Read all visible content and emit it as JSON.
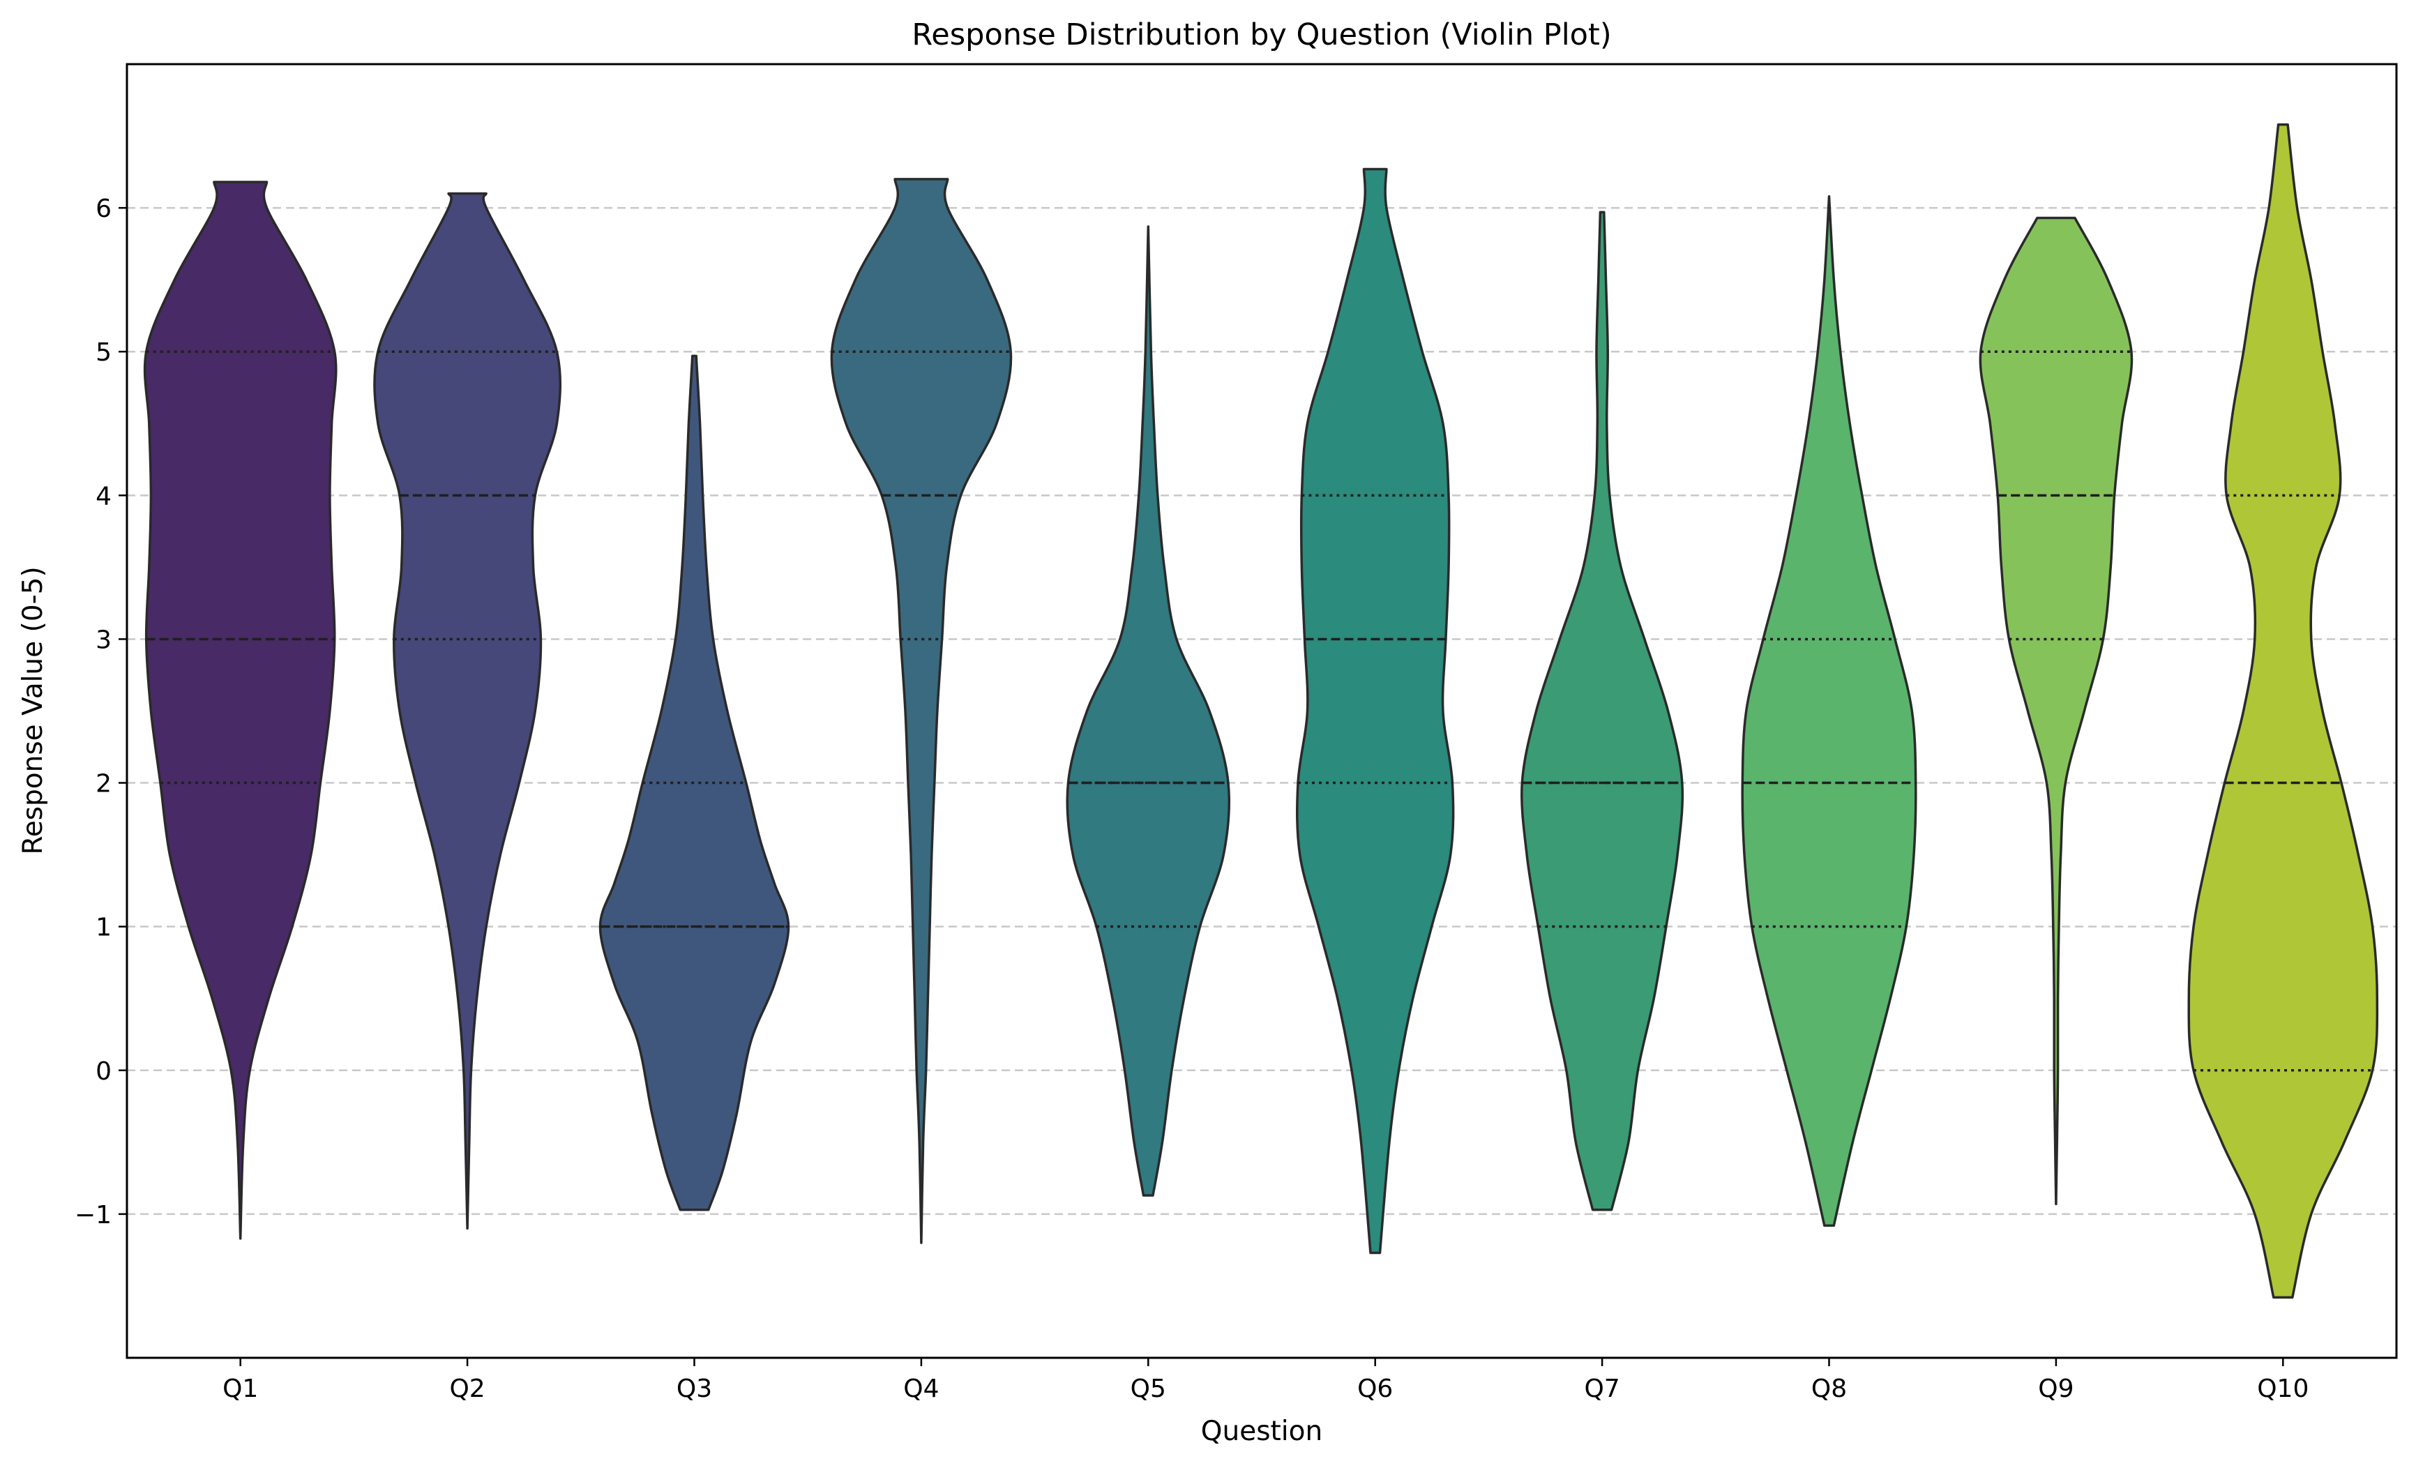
{
  "chart_data": {
    "type": "violin",
    "title": "Response Distribution by Question (Violin Plot)",
    "xlabel": "Question",
    "ylabel": "Response Value (0-5)",
    "ylim": [
      -2,
      7
    ],
    "yticks": [
      -1,
      0,
      1,
      2,
      3,
      4,
      5,
      6
    ],
    "ytick_labels": [
      "−1",
      "0",
      "1",
      "2",
      "3",
      "4",
      "5",
      "6"
    ],
    "grid": {
      "y": true,
      "style": "dashed"
    },
    "inner": "quartile",
    "categories": [
      "Q1",
      "Q2",
      "Q3",
      "Q4",
      "Q5",
      "Q6",
      "Q7",
      "Q8",
      "Q9",
      "Q10"
    ],
    "series": [
      {
        "category": "Q1",
        "color": "#482a66",
        "range": [
          -1.17,
          6.18
        ],
        "quartiles": [
          2,
          3,
          5
        ],
        "density": [
          [
            -1.17,
            0.0
          ],
          [
            -0.5,
            0.03
          ],
          [
            0,
            0.1
          ],
          [
            0.5,
            0.3
          ],
          [
            1,
            0.55
          ],
          [
            1.5,
            0.75
          ],
          [
            2,
            0.85
          ],
          [
            2.5,
            0.95
          ],
          [
            3,
            1.0
          ],
          [
            3.5,
            0.97
          ],
          [
            4,
            0.95
          ],
          [
            4.5,
            0.97
          ],
          [
            5,
            1.0
          ],
          [
            5.5,
            0.7
          ],
          [
            6,
            0.28
          ],
          [
            6.18,
            0.28
          ]
        ]
      },
      {
        "category": "Q2",
        "color": "#46487a",
        "range": [
          -1.1,
          6.1
        ],
        "quartiles": [
          3,
          4,
          5
        ],
        "density": [
          [
            -1.1,
            0.0
          ],
          [
            -0.5,
            0.02
          ],
          [
            0,
            0.04
          ],
          [
            0.5,
            0.1
          ],
          [
            1,
            0.2
          ],
          [
            1.5,
            0.35
          ],
          [
            2,
            0.55
          ],
          [
            2.5,
            0.72
          ],
          [
            3,
            0.78
          ],
          [
            3.5,
            0.7
          ],
          [
            4,
            0.72
          ],
          [
            4.5,
            0.95
          ],
          [
            5,
            0.95
          ],
          [
            5.5,
            0.6
          ],
          [
            6,
            0.2
          ],
          [
            6.1,
            0.2
          ]
        ]
      },
      {
        "category": "Q3",
        "color": "#40577d",
        "range": [
          -0.97,
          4.97
        ],
        "quartiles": [
          1,
          1,
          2
        ],
        "density": [
          [
            -0.97,
            0.15
          ],
          [
            -0.7,
            0.3
          ],
          [
            -0.3,
            0.45
          ],
          [
            0.2,
            0.6
          ],
          [
            0.6,
            0.85
          ],
          [
            1,
            1.0
          ],
          [
            1.3,
            0.85
          ],
          [
            1.6,
            0.7
          ],
          [
            2,
            0.55
          ],
          [
            2.5,
            0.35
          ],
          [
            3,
            0.2
          ],
          [
            3.5,
            0.13
          ],
          [
            4,
            0.09
          ],
          [
            4.5,
            0.06
          ],
          [
            4.97,
            0.02
          ]
        ]
      },
      {
        "category": "Q4",
        "color": "#3a6a7f",
        "range": [
          -1.2,
          6.2
        ],
        "quartiles": [
          3,
          4,
          5
        ],
        "density": [
          [
            -1.2,
            0.0
          ],
          [
            -0.5,
            0.02
          ],
          [
            0,
            0.05
          ],
          [
            0.5,
            0.07
          ],
          [
            1,
            0.09
          ],
          [
            1.5,
            0.11
          ],
          [
            2,
            0.14
          ],
          [
            2.5,
            0.17
          ],
          [
            3,
            0.22
          ],
          [
            3.5,
            0.27
          ],
          [
            4,
            0.42
          ],
          [
            4.5,
            0.8
          ],
          [
            5,
            0.95
          ],
          [
            5.5,
            0.7
          ],
          [
            6,
            0.28
          ],
          [
            6.2,
            0.28
          ]
        ]
      },
      {
        "category": "Q5",
        "color": "#307a80",
        "range": [
          -0.87,
          5.87
        ],
        "quartiles": [
          1,
          2,
          2
        ],
        "density": [
          [
            -0.87,
            0.05
          ],
          [
            -0.5,
            0.15
          ],
          [
            0,
            0.25
          ],
          [
            0.5,
            0.38
          ],
          [
            1,
            0.55
          ],
          [
            1.5,
            0.8
          ],
          [
            2,
            0.85
          ],
          [
            2.5,
            0.65
          ],
          [
            3,
            0.3
          ],
          [
            3.5,
            0.17
          ],
          [
            4,
            0.1
          ],
          [
            4.5,
            0.06
          ],
          [
            5,
            0.03
          ],
          [
            5.87,
            0.0
          ]
        ]
      },
      {
        "category": "Q6",
        "color": "#2b8b7c",
        "range": [
          -1.27,
          6.27
        ],
        "quartiles": [
          2,
          3,
          4
        ],
        "density": [
          [
            -1.27,
            0.05
          ],
          [
            -0.5,
            0.15
          ],
          [
            0,
            0.25
          ],
          [
            0.5,
            0.4
          ],
          [
            1,
            0.6
          ],
          [
            1.5,
            0.8
          ],
          [
            2,
            0.82
          ],
          [
            2.5,
            0.72
          ],
          [
            3,
            0.75
          ],
          [
            3.5,
            0.78
          ],
          [
            4,
            0.78
          ],
          [
            4.5,
            0.72
          ],
          [
            5,
            0.5
          ],
          [
            5.5,
            0.3
          ],
          [
            6,
            0.12
          ],
          [
            6.27,
            0.12
          ]
        ]
      },
      {
        "category": "Q7",
        "color": "#3a9b74",
        "range": [
          -0.97,
          5.97
        ],
        "quartiles": [
          1,
          2,
          2
        ],
        "density": [
          [
            -0.97,
            0.1
          ],
          [
            -0.5,
            0.28
          ],
          [
            0,
            0.38
          ],
          [
            0.5,
            0.55
          ],
          [
            1,
            0.68
          ],
          [
            1.5,
            0.8
          ],
          [
            2,
            0.85
          ],
          [
            2.5,
            0.7
          ],
          [
            3,
            0.45
          ],
          [
            3.5,
            0.2
          ],
          [
            4,
            0.08
          ],
          [
            4.5,
            0.05
          ],
          [
            5,
            0.06
          ],
          [
            5.5,
            0.04
          ],
          [
            5.97,
            0.02
          ]
        ]
      },
      {
        "category": "Q8",
        "color": "#5ab46c",
        "range": [
          -1.08,
          6.08
        ],
        "quartiles": [
          1,
          2,
          3
        ],
        "density": [
          [
            -1.08,
            0.05
          ],
          [
            -0.5,
            0.25
          ],
          [
            0,
            0.45
          ],
          [
            0.5,
            0.65
          ],
          [
            1,
            0.82
          ],
          [
            1.5,
            0.9
          ],
          [
            2,
            0.92
          ],
          [
            2.5,
            0.88
          ],
          [
            3,
            0.7
          ],
          [
            3.5,
            0.5
          ],
          [
            4,
            0.35
          ],
          [
            4.5,
            0.22
          ],
          [
            5,
            0.12
          ],
          [
            5.5,
            0.05
          ],
          [
            6.08,
            0.0
          ]
        ]
      },
      {
        "category": "Q9",
        "color": "#86c25a",
        "range": [
          -0.93,
          5.93
        ],
        "quartiles": [
          3,
          4,
          5
        ],
        "density": [
          [
            -0.93,
            0.0
          ],
          [
            -0.5,
            0.01
          ],
          [
            0,
            0.02
          ],
          [
            0.5,
            0.02
          ],
          [
            1,
            0.03
          ],
          [
            1.5,
            0.05
          ],
          [
            2,
            0.1
          ],
          [
            2.5,
            0.3
          ],
          [
            3,
            0.5
          ],
          [
            3.5,
            0.58
          ],
          [
            4,
            0.62
          ],
          [
            4.5,
            0.7
          ],
          [
            5,
            0.8
          ],
          [
            5.5,
            0.55
          ],
          [
            5.93,
            0.2
          ]
        ]
      },
      {
        "category": "Q10",
        "color": "#afc636",
        "range": [
          -1.58,
          6.58
        ],
        "quartiles": [
          0,
          2,
          4
        ],
        "density": [
          [
            -1.58,
            0.1
          ],
          [
            -1.0,
            0.3
          ],
          [
            -0.5,
            0.65
          ],
          [
            0,
            0.95
          ],
          [
            0.5,
            1.0
          ],
          [
            1,
            0.95
          ],
          [
            1.5,
            0.8
          ],
          [
            2,
            0.62
          ],
          [
            2.5,
            0.42
          ],
          [
            3,
            0.3
          ],
          [
            3.5,
            0.35
          ],
          [
            4,
            0.6
          ],
          [
            4.5,
            0.55
          ],
          [
            5,
            0.42
          ],
          [
            5.5,
            0.3
          ],
          [
            6,
            0.15
          ],
          [
            6.58,
            0.05
          ]
        ]
      }
    ]
  }
}
